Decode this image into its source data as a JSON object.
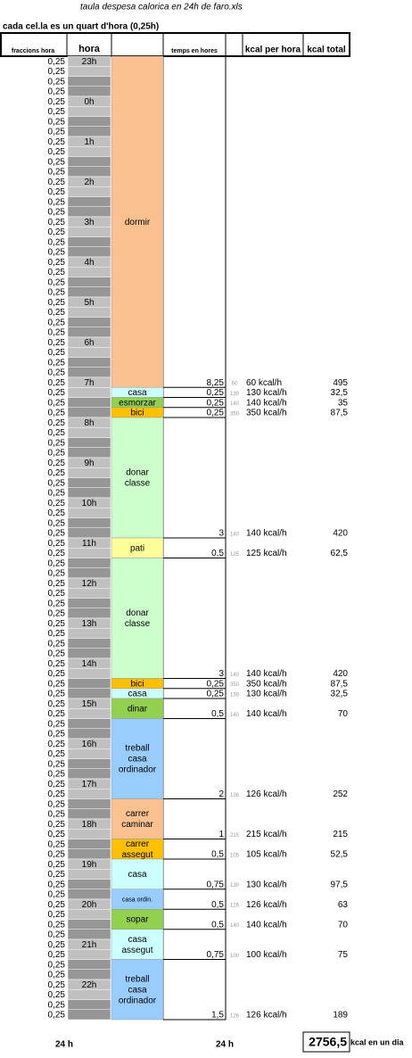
{
  "header": {
    "title": "taula despesa calorica en 24h de faro.xls",
    "note": "cada cel.la es un quart d'hora (0,25h)"
  },
  "columns": {
    "fractions": "fraccions hora",
    "hour": "hora",
    "time": "temps en hores",
    "kcal_per_hour": "kcal per hora",
    "kcal_total": "kcal total"
  },
  "fractions": [
    "0,25",
    "0,25",
    "0,25",
    "0,25",
    "0,25",
    "0,25",
    "0,25",
    "0,25",
    "0,25",
    "0,25",
    "0,25",
    "0,25",
    "0,25",
    "0,25",
    "0,25",
    "0,25",
    "0,25",
    "0,25",
    "0,25",
    "0,25",
    "0,25",
    "0,25",
    "0,25",
    "0,25",
    "0,25",
    "0,25",
    "0,25",
    "0,25",
    "0,25",
    "0,25",
    "0,25",
    "0,25",
    "0,25",
    "0,25",
    "0,25",
    "0,25",
    "0,25",
    "0,25",
    "0,25",
    "0,25",
    "0,25",
    "0,25",
    "0,25",
    "0,25",
    "0,25",
    "0,25",
    "0,25",
    "0,25",
    "0,25",
    "0,25",
    "0,25",
    "0,25",
    "0,25",
    "0,25",
    "0,25",
    "0,25",
    "0,25",
    "0,25",
    "0,25",
    "0,25",
    "0,25",
    "0,25",
    "0,25",
    "0,25",
    "0,25",
    "0,25",
    "0,25",
    "0,25",
    "0,25",
    "0,25",
    "0,25",
    "0,25",
    "0,25",
    "0,25",
    "0,25",
    "0,25",
    "0,25",
    "0,25",
    "0,25",
    "0,25",
    "0,25",
    "0,25",
    "0,25",
    "0,25",
    "0,25",
    "0,25",
    "0,25",
    "0,25",
    "0,25",
    "0,25",
    "0,25",
    "0,25",
    "0,25",
    "0,25",
    "0,25",
    "0,25"
  ],
  "hours": [
    "23h",
    "0h",
    "1h",
    "2h",
    "3h",
    "4h",
    "5h",
    "6h",
    "7h",
    "8h",
    "9h",
    "10h",
    "11h",
    "12h",
    "13h",
    "14h",
    "15h",
    "16h",
    "17h",
    "18h",
    "19h",
    "20h",
    "21h",
    "22h"
  ],
  "activities": [
    {
      "label": [
        "dormir"
      ],
      "color": "#fac090",
      "time": "8,25",
      "kcal": "60",
      "per_hour": "60 kcal/h",
      "total": "495"
    },
    {
      "label": [
        "casa"
      ],
      "color": "#ccffff",
      "time": "0,25",
      "kcal": "130",
      "per_hour": "130 kcal/h",
      "total": "32,5"
    },
    {
      "label": [
        "esmorzar"
      ],
      "color": "#92d050",
      "time": "0,25",
      "kcal": "140",
      "per_hour": "140 kcal/h",
      "total": "35"
    },
    {
      "label": [
        "bici"
      ],
      "color": "#ffc000",
      "time": "0,25",
      "kcal": "350",
      "per_hour": "350 kcal/h",
      "total": "87,5"
    },
    {
      "label": [
        "donar",
        "classe"
      ],
      "color": "#ccffcc",
      "time": "3",
      "kcal": "140",
      "per_hour": "140 kcal/h",
      "total": "420"
    },
    {
      "label": [
        "pati"
      ],
      "color": "#ffff99",
      "time": "0,5",
      "kcal": "125",
      "per_hour": "125 kcal/h",
      "total": "62,5"
    },
    {
      "label": [
        "donar",
        "classe"
      ],
      "color": "#ccffcc",
      "time": "3",
      "kcal": "140",
      "per_hour": "140 kcal/h",
      "total": "420"
    },
    {
      "label": [
        "bici"
      ],
      "color": "#ffc000",
      "time": "0,25",
      "kcal": "350",
      "per_hour": "350 kcal/h",
      "total": "87,5"
    },
    {
      "label": [
        "casa"
      ],
      "color": "#ccffff",
      "time": "0,25",
      "kcal": "130",
      "per_hour": "130 kcal/h",
      "total": "32,5"
    },
    {
      "label": [
        "dinar"
      ],
      "color": "#92d050",
      "time": "0,5",
      "kcal": "140",
      "per_hour": "140 kcal/h",
      "total": "70"
    },
    {
      "label": [
        "treball",
        "casa",
        "ordinador"
      ],
      "color": "#99ccff",
      "time": "2",
      "kcal": "126",
      "per_hour": "126 kcal/h",
      "total": "252"
    },
    {
      "label": [
        "carrer",
        "caminar"
      ],
      "color": "#fac090",
      "time": "1",
      "kcal": "215",
      "per_hour": "215 kcal/h",
      "total": "215"
    },
    {
      "label": [
        "carrer",
        "assegut"
      ],
      "color": "#ffc000",
      "time": "0,5",
      "kcal": "105",
      "per_hour": "105 kcal/h",
      "total": "52,5"
    },
    {
      "label": [
        "casa"
      ],
      "color": "#ccffff",
      "time": "0,75",
      "kcal": "130",
      "per_hour": "130 kcal/h",
      "total": "97,5"
    },
    {
      "label": [
        "casa ordin."
      ],
      "color": "#99ccff",
      "time": "0,5",
      "kcal": "126",
      "per_hour": "126 kcal/h",
      "total": "63"
    },
    {
      "label": [
        "sopar"
      ],
      "color": "#92d050",
      "time": "0,5",
      "kcal": "140",
      "per_hour": "140 kcal/h",
      "total": "70"
    },
    {
      "label": [
        "casa",
        "assegut"
      ],
      "color": "#ccffff",
      "time": "0,75",
      "kcal": "100",
      "per_hour": "100 kcal/h",
      "total": "75"
    },
    {
      "label": [
        "treball",
        "casa",
        "ordinador"
      ],
      "color": "#99ccff",
      "time": "1,5",
      "kcal": "126",
      "per_hour": "126 kcal/h",
      "total": "189"
    }
  ],
  "footer": {
    "hours_left": "24 h",
    "hours_right": "24 h",
    "total": "2756,5",
    "total_unit": "kcal en un dia"
  }
}
